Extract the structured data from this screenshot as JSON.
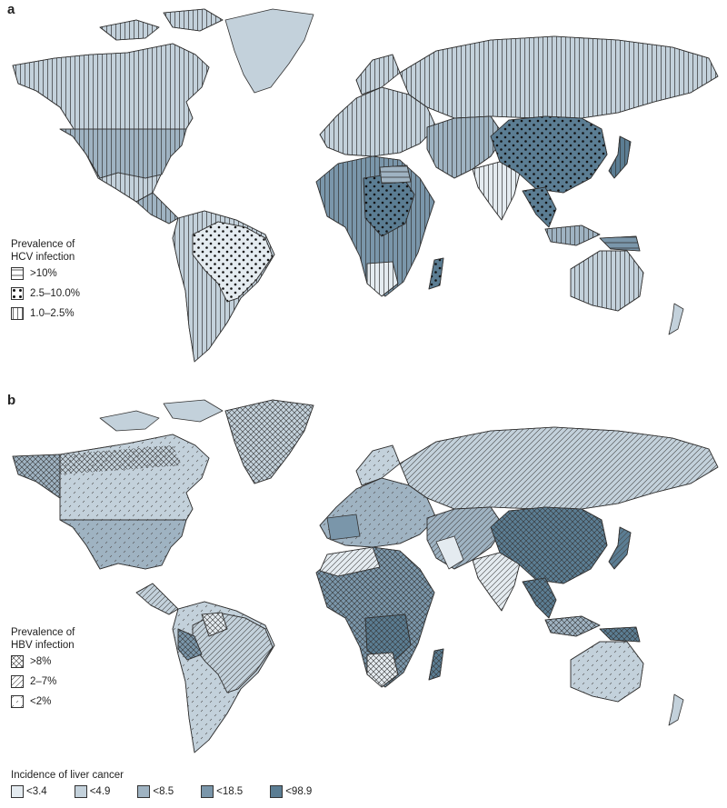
{
  "panel_a": {
    "letter": "a",
    "legend": {
      "title_line1": "Prevalence of",
      "title_line2": "HCV infection",
      "items": [
        {
          "label": ">10%",
          "pattern": "horizontal-lines"
        },
        {
          "label": "2.5–10.0%",
          "pattern": "dots"
        },
        {
          "label": "1.0–2.5%",
          "pattern": "vertical-lines"
        }
      ]
    }
  },
  "panel_b": {
    "letter": "b",
    "legend": {
      "title_line1": "Prevalence of",
      "title_line2": "HBV infection",
      "items": [
        {
          "label": ">8%",
          "pattern": "crosshatch"
        },
        {
          "label": "2–7%",
          "pattern": "diagonal-lines"
        },
        {
          "label": "<2%",
          "pattern": "sparse-dashes"
        }
      ]
    }
  },
  "cancer_legend": {
    "title": "Incidence of liver cancer",
    "items": [
      {
        "label": "<3.4",
        "color": "#e4ebf0"
      },
      {
        "label": "<4.9",
        "color": "#c3d1db"
      },
      {
        "label": "<8.5",
        "color": "#9fb3c2"
      },
      {
        "label": "<18.5",
        "color": "#7a96aa"
      },
      {
        "label": "<98.9",
        "color": "#5b7d93"
      }
    ]
  }
}
